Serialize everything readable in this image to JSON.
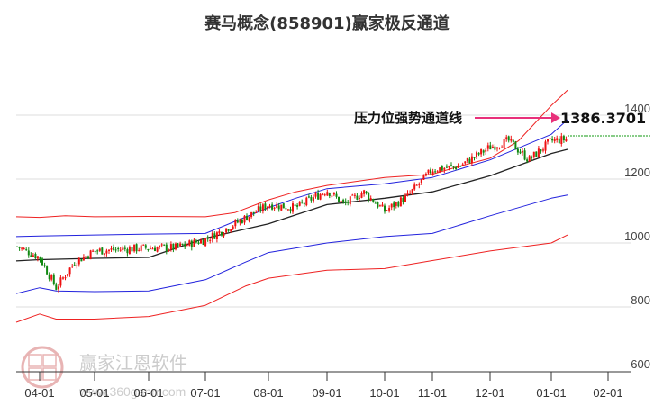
{
  "title": "赛马概念(858901)赢家极反通道",
  "annotation": {
    "label": "压力位强势通道线",
    "value": "1386.3701",
    "arrow_color": "#e8307a"
  },
  "watermark": {
    "name": "赢家江恩软件",
    "url": "www.360gann.com",
    "logo_chars": [
      "江",
      "赢",
      "恩",
      "家"
    ]
  },
  "colors": {
    "up": "#ee1111",
    "down": "#118811",
    "outer_channel": "#ee2222",
    "inner_channel": "#2222dd",
    "middle_line": "#222222",
    "last_price_line": "#119911",
    "grid": "#dddddd"
  },
  "chart_data": {
    "type": "candlestick",
    "title": "赛马概念(858901)赢家极反通道",
    "xlabel": "",
    "ylabel": "",
    "ylim": [
      600,
      1450
    ],
    "yticks": [
      600,
      800,
      1000,
      1200,
      1400
    ],
    "xticks": [
      "04-01",
      "05-01",
      "06-01",
      "07-01",
      "08-01",
      "09-01",
      "10-01",
      "11-01",
      "12-01",
      "01-01",
      "02-01"
    ],
    "grid": true,
    "annotations": [
      {
        "text": "压力位强势通道线",
        "value": 1386.3701,
        "type": "arrow"
      }
    ],
    "last_close_line": 1325,
    "series": [
      {
        "name": "upper_outer_channel",
        "color": "#ee2222",
        "x": [
          "03-20",
          "04-01",
          "04-15",
          "05-01",
          "06-01",
          "07-01",
          "07-15",
          "08-01",
          "08-15",
          "09-01",
          "10-01",
          "11-01",
          "11-15",
          "12-01",
          "12-15",
          "01-01",
          "01-10"
        ],
        "values": [
          1082,
          1080,
          1085,
          1082,
          1083,
          1082,
          1095,
          1135,
          1160,
          1180,
          1205,
          1215,
          1240,
          1265,
          1320,
          1430,
          1478
        ]
      },
      {
        "name": "upper_inner_channel",
        "color": "#2222dd",
        "x": [
          "03-20",
          "04-01",
          "05-01",
          "06-01",
          "07-01",
          "08-01",
          "08-15",
          "09-01",
          "10-01",
          "11-01",
          "12-01",
          "01-01",
          "01-10"
        ],
        "values": [
          1020,
          1022,
          1025,
          1028,
          1030,
          1110,
          1140,
          1170,
          1185,
          1205,
          1260,
          1340,
          1386
        ]
      },
      {
        "name": "middle_line",
        "color": "#222222",
        "x": [
          "03-20",
          "04-01",
          "05-01",
          "06-01",
          "07-01",
          "08-01",
          "09-01",
          "10-01",
          "11-01",
          "12-01",
          "01-01",
          "01-10"
        ],
        "values": [
          944,
          948,
          952,
          955,
          1015,
          1060,
          1120,
          1140,
          1160,
          1210,
          1280,
          1293
        ]
      },
      {
        "name": "lower_inner_channel",
        "color": "#2222dd",
        "x": [
          "03-20",
          "04-01",
          "04-10",
          "05-01",
          "06-01",
          "07-01",
          "07-20",
          "08-01",
          "09-01",
          "10-01",
          "11-01",
          "12-01",
          "01-01",
          "01-10"
        ],
        "values": [
          842,
          860,
          850,
          848,
          850,
          885,
          940,
          970,
          1000,
          1020,
          1030,
          1085,
          1140,
          1150
        ]
      },
      {
        "name": "lower_outer_channel",
        "color": "#ee2222",
        "x": [
          "03-20",
          "04-01",
          "04-10",
          "05-01",
          "06-01",
          "07-01",
          "07-20",
          "08-01",
          "09-01",
          "10-01",
          "11-01",
          "12-01",
          "01-01",
          "01-10"
        ],
        "values": [
          752,
          778,
          762,
          762,
          770,
          805,
          865,
          890,
          915,
          920,
          945,
          975,
          1000,
          1025
        ]
      },
      {
        "name": "price_close_approx",
        "color": "#ee1111",
        "x": [
          "03-20",
          "04-01",
          "04-10",
          "04-20",
          "05-01",
          "05-15",
          "06-01",
          "06-15",
          "07-01",
          "07-15",
          "08-01",
          "08-15",
          "09-01",
          "09-10",
          "09-20",
          "10-01",
          "10-15",
          "11-01",
          "11-15",
          "12-01",
          "12-10",
          "12-20",
          "01-01",
          "01-10"
        ],
        "values": [
          990,
          955,
          860,
          940,
          975,
          980,
          985,
          985,
          1010,
          1060,
          1120,
          1110,
          1165,
          1120,
          1160,
          1100,
          1145,
          1230,
          1240,
          1300,
          1320,
          1260,
          1320,
          1325
        ]
      }
    ]
  }
}
